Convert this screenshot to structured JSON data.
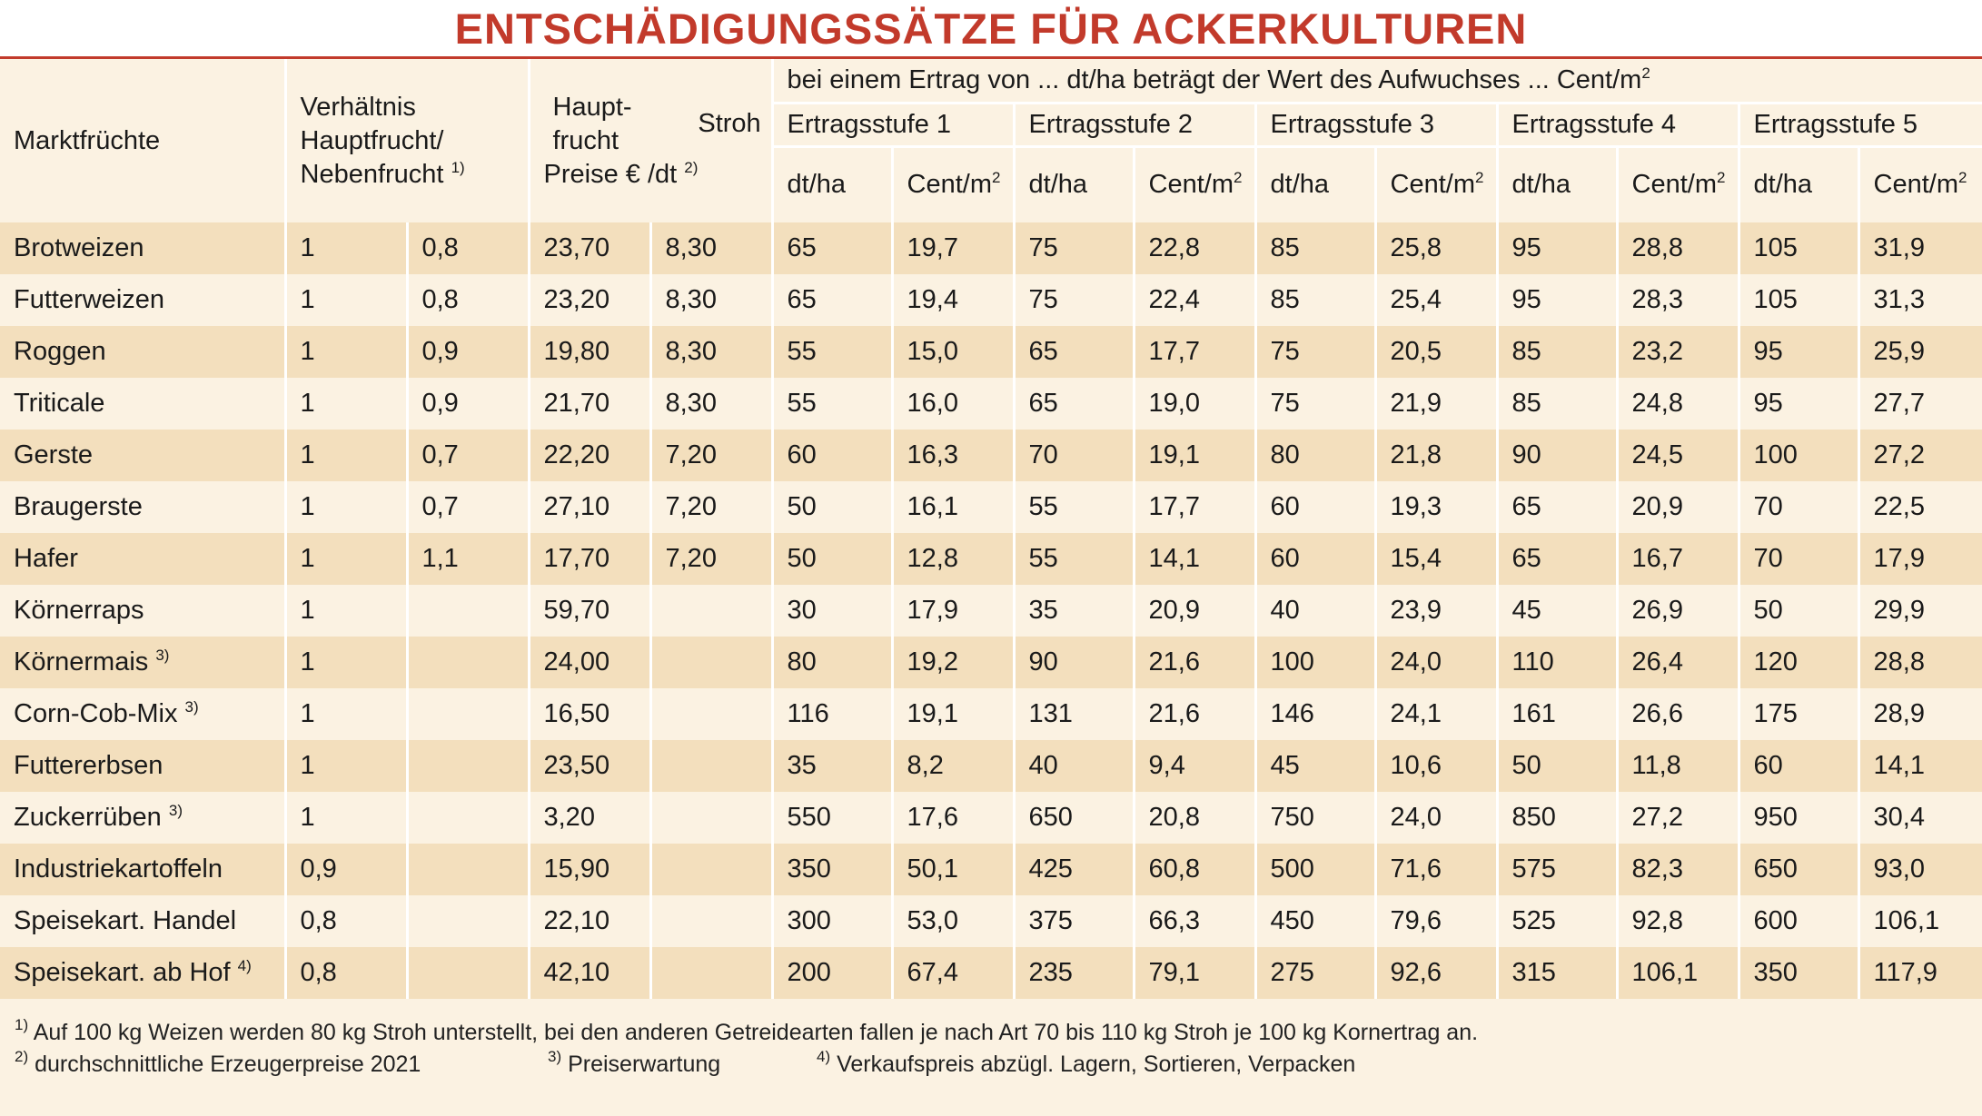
{
  "title": "ENTSCHÄDIGUNGSSÄTZE FÜR ACKERKULTUREN",
  "header": {
    "crops": "Marktfrüchte",
    "ratio_line1": "Verhältnis",
    "ratio_line2": "Hauptfrucht/",
    "ratio_line3": "Nebenfrucht",
    "ratio_sup": "1)",
    "price_line1": "Haupt-",
    "price_line2": "frucht",
    "price_line3": "Preise € /dt",
    "price_sup": "2)",
    "straw": "Stroh",
    "group_caption": "bei einem Ertrag von ... dt/ha beträgt der Wert des Aufwuchses ... Cent/m",
    "group_caption_sup": "2",
    "stages": [
      "Ertragsstufe 1",
      "Ertragsstufe 2",
      "Ertragsstufe 3",
      "Ertragsstufe 4",
      "Ertragsstufe 5"
    ],
    "unit_yield": "dt/ha",
    "unit_value": "Cent/m",
    "unit_value_sup": "2"
  },
  "rows": [
    {
      "name": "Brotweizen",
      "sup": "",
      "r1": "1",
      "r2": "0,8",
      "price": "23,70",
      "straw": "8,30",
      "s": [
        "65",
        "19,7",
        "75",
        "22,8",
        "85",
        "25,8",
        "95",
        "28,8",
        "105",
        "31,9"
      ]
    },
    {
      "name": "Futterweizen",
      "sup": "",
      "r1": "1",
      "r2": "0,8",
      "price": "23,20",
      "straw": "8,30",
      "s": [
        "65",
        "19,4",
        "75",
        "22,4",
        "85",
        "25,4",
        "95",
        "28,3",
        "105",
        "31,3"
      ]
    },
    {
      "name": "Roggen",
      "sup": "",
      "r1": "1",
      "r2": "0,9",
      "price": "19,80",
      "straw": "8,30",
      "s": [
        "55",
        "15,0",
        "65",
        "17,7",
        "75",
        "20,5",
        "85",
        "23,2",
        "95",
        "25,9"
      ]
    },
    {
      "name": "Triticale",
      "sup": "",
      "r1": "1",
      "r2": "0,9",
      "price": "21,70",
      "straw": "8,30",
      "s": [
        "55",
        "16,0",
        "65",
        "19,0",
        "75",
        "21,9",
        "85",
        "24,8",
        "95",
        "27,7"
      ]
    },
    {
      "name": "Gerste",
      "sup": "",
      "r1": "1",
      "r2": "0,7",
      "price": "22,20",
      "straw": "7,20",
      "s": [
        "60",
        "16,3",
        "70",
        "19,1",
        "80",
        "21,8",
        "90",
        "24,5",
        "100",
        "27,2"
      ]
    },
    {
      "name": "Braugerste",
      "sup": "",
      "r1": "1",
      "r2": "0,7",
      "price": "27,10",
      "straw": "7,20",
      "s": [
        "50",
        "16,1",
        "55",
        "17,7",
        "60",
        "19,3",
        "65",
        "20,9",
        "70",
        "22,5"
      ]
    },
    {
      "name": "Hafer",
      "sup": "",
      "r1": "1",
      "r2": "1,1",
      "price": "17,70",
      "straw": "7,20",
      "s": [
        "50",
        "12,8",
        "55",
        "14,1",
        "60",
        "15,4",
        "65",
        "16,7",
        "70",
        "17,9"
      ]
    },
    {
      "name": "Körnerraps",
      "sup": "",
      "r1": "1",
      "r2": "",
      "price": "59,70",
      "straw": "",
      "s": [
        "30",
        "17,9",
        "35",
        "20,9",
        "40",
        "23,9",
        "45",
        "26,9",
        "50",
        "29,9"
      ]
    },
    {
      "name": "Körnermais",
      "sup": "3)",
      "r1": "1",
      "r2": "",
      "price": "24,00",
      "straw": "",
      "s": [
        "80",
        "19,2",
        "90",
        "21,6",
        "100",
        "24,0",
        "110",
        "26,4",
        "120",
        "28,8"
      ]
    },
    {
      "name": "Corn-Cob-Mix",
      "sup": "3)",
      "r1": "1",
      "r2": "",
      "price": "16,50",
      "straw": "",
      "s": [
        "116",
        "19,1",
        "131",
        "21,6",
        "146",
        "24,1",
        "161",
        "26,6",
        "175",
        "28,9"
      ]
    },
    {
      "name": "Futtererbsen",
      "sup": "",
      "r1": "1",
      "r2": "",
      "price": "23,50",
      "straw": "",
      "s": [
        "35",
        "8,2",
        "40",
        "9,4",
        "45",
        "10,6",
        "50",
        "11,8",
        "60",
        "14,1"
      ]
    },
    {
      "name": "Zuckerrüben",
      "sup": "3)",
      "r1": "1",
      "r2": "",
      "price": "3,20",
      "straw": "",
      "s": [
        "550",
        "17,6",
        "650",
        "20,8",
        "750",
        "24,0",
        "850",
        "27,2",
        "950",
        "30,4"
      ]
    },
    {
      "name": "Industriekartoffeln",
      "sup": "",
      "r1": "0,9",
      "r2": "",
      "price": "15,90",
      "straw": "",
      "s": [
        "350",
        "50,1",
        "425",
        "60,8",
        "500",
        "71,6",
        "575",
        "82,3",
        "650",
        "93,0"
      ]
    },
    {
      "name": "Speisekart. Handel",
      "sup": "",
      "r1": "0,8",
      "r2": "",
      "price": "22,10",
      "straw": "",
      "s": [
        "300",
        "53,0",
        "375",
        "66,3",
        "450",
        "79,6",
        "525",
        "92,8",
        "600",
        "106,1"
      ]
    },
    {
      "name": "Speisekart. ab Hof",
      "sup": "4)",
      "r1": "0,8",
      "r2": "",
      "price": "42,10",
      "straw": "",
      "s": [
        "200",
        "67,4",
        "235",
        "79,1",
        "275",
        "92,6",
        "315",
        "106,1",
        "350",
        "117,9"
      ]
    }
  ],
  "footnotes": {
    "f1_mark": "1)",
    "f1": "Auf 100 kg Weizen werden 80 kg Stroh unterstellt, bei den anderen Getreidearten fallen je nach Art 70 bis 110 kg Stroh je 100 kg Kornertrag an.",
    "f2_mark": "2)",
    "f2": "durchschnittliche Erzeugerpreise 2021",
    "f3_mark": "3)",
    "f3": "Preiserwartung",
    "f4_mark": "4)",
    "f4": "Verkaufspreis abzügl. Lagern, Sortieren, Verpacken"
  }
}
